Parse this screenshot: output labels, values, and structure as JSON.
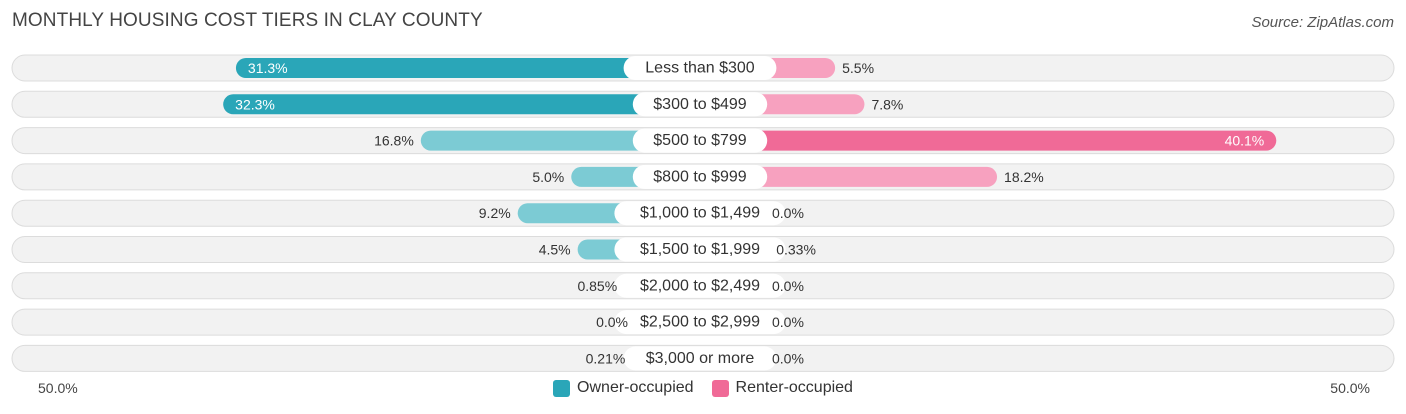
{
  "chart_data": {
    "type": "bar",
    "title": "MONTHLY HOUSING COST TIERS IN CLAY COUNTY",
    "source": "Source: ZipAtlas.com",
    "categories": [
      "Less than $300",
      "$300 to $499",
      "$500 to $799",
      "$800 to $999",
      "$1,000 to $1,499",
      "$1,500 to $1,999",
      "$2,000 to $2,499",
      "$2,500 to $2,999",
      "$3,000 or more"
    ],
    "series": [
      {
        "name": "Owner-occupied",
        "values": [
          31.3,
          32.3,
          16.8,
          5.0,
          9.2,
          4.5,
          0.85,
          0.0,
          0.21
        ],
        "labels": [
          "31.3%",
          "32.3%",
          "16.8%",
          "5.0%",
          "9.2%",
          "4.5%",
          "0.85%",
          "0.0%",
          "0.21%"
        ]
      },
      {
        "name": "Renter-occupied",
        "values": [
          5.5,
          7.8,
          40.1,
          18.2,
          0.0,
          0.33,
          0.0,
          0.0,
          0.0
        ],
        "labels": [
          "5.5%",
          "7.8%",
          "40.1%",
          "18.2%",
          "0.0%",
          "0.33%",
          "0.0%",
          "0.0%",
          "0.0%"
        ]
      }
    ],
    "axis_left_label": "50.0%",
    "axis_right_label": "50.0%",
    "xlim": [
      -50,
      50
    ],
    "legend_placement": "bottom-center",
    "colors": {
      "owner_strong": "#2aa6b8",
      "owner_light": "#7ccbd4",
      "renter_strong": "#f06a97",
      "renter_light": "#f7a1bf"
    }
  }
}
